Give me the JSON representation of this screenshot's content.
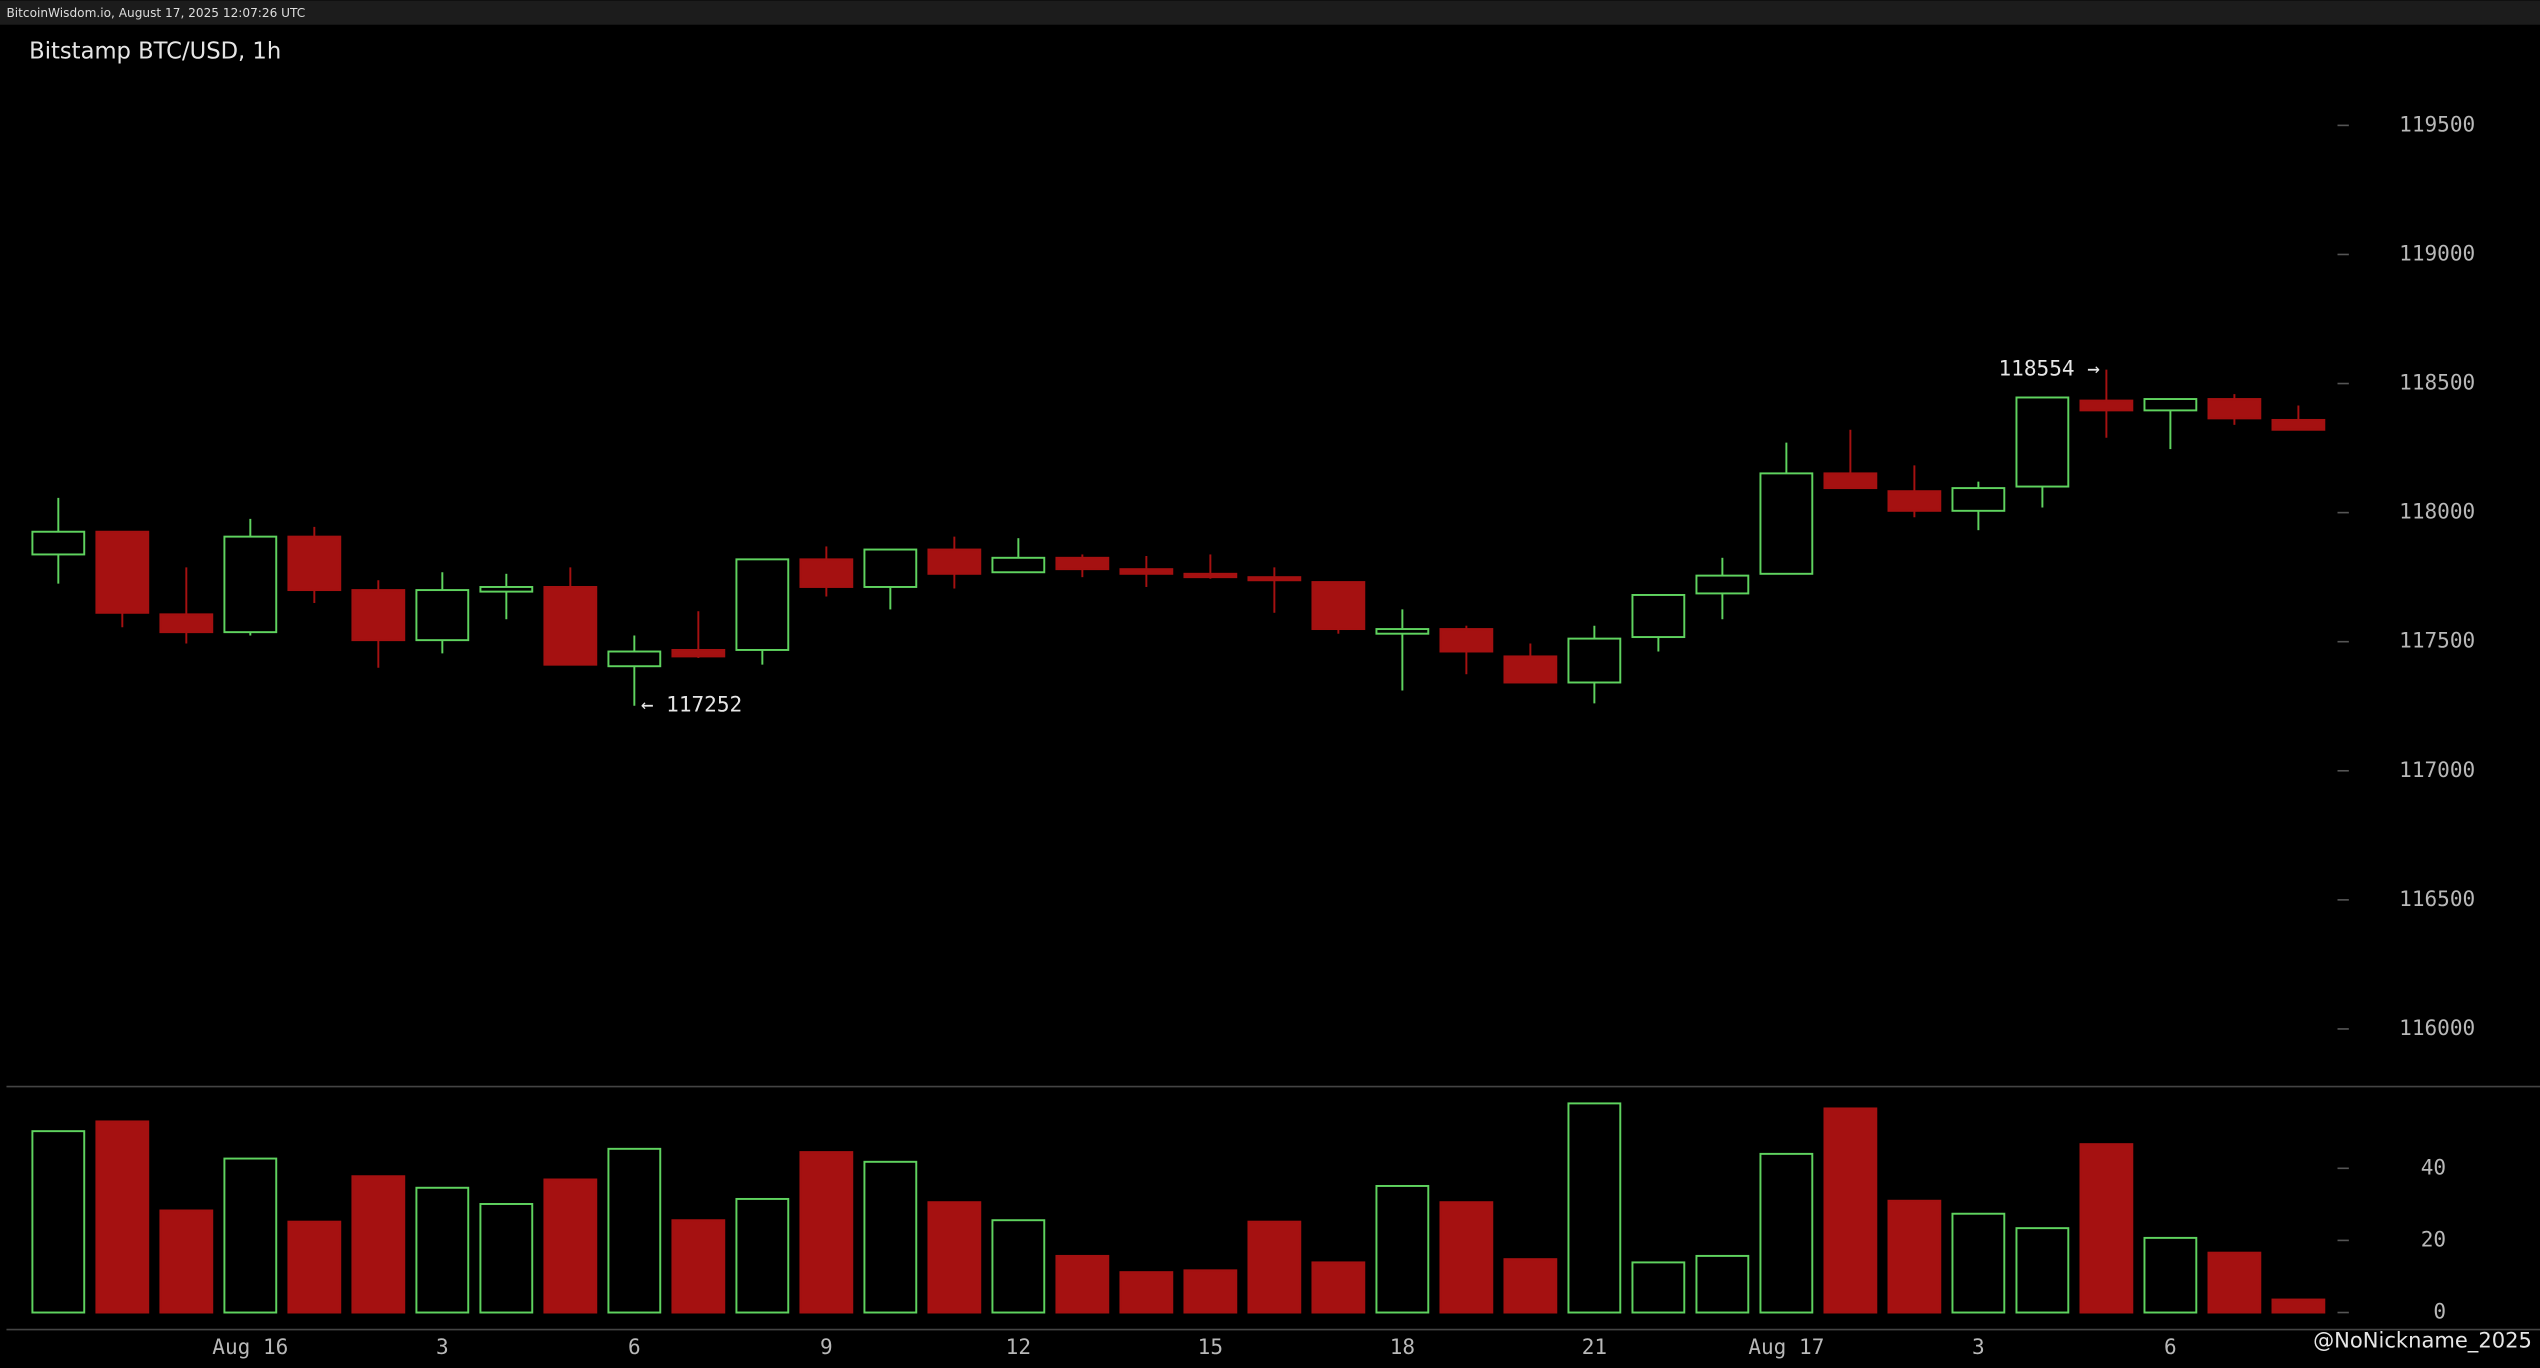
{
  "header": "BitcoinWisdom.io, August 17, 2025 12:07:26 UTC",
  "watermark": "@NoNickname_2025",
  "chart_data": {
    "type": "candlestick",
    "title": "Bitstamp BTC/USD, 1h",
    "categories": [
      null,
      null,
      null,
      "Aug 16",
      null,
      null,
      "3",
      null,
      null,
      "6",
      null,
      null,
      "9",
      null,
      null,
      "12",
      null,
      null,
      "15",
      null,
      null,
      "18",
      null,
      null,
      "21",
      null,
      null,
      "Aug 17",
      null,
      null,
      "3",
      null,
      null,
      "6",
      null,
      null
    ],
    "open": [
      117838,
      117926,
      117606,
      117537,
      117907,
      117700,
      117506,
      117694,
      117712,
      117405,
      117468,
      117468,
      117819,
      117712,
      117857,
      117769,
      117825,
      117781,
      117763,
      117750,
      117731,
      117531,
      117549,
      117443,
      117342,
      117518,
      117687,
      117763,
      118152,
      118083,
      118007,
      118101,
      118434,
      118396,
      118440,
      118359
    ],
    "high": [
      118057,
      117926,
      117788,
      117976,
      117945,
      117738,
      117769,
      117763,
      117788,
      117524,
      117618,
      117819,
      117869,
      117857,
      117907,
      117901,
      117838,
      117832,
      117838,
      117788,
      117731,
      117625,
      117562,
      117493,
      117562,
      117681,
      117825,
      118271,
      118321,
      118183,
      118120,
      118446,
      118554,
      118440,
      118459,
      118415
    ],
    "low": [
      117725,
      117556,
      117493,
      117524,
      117650,
      117399,
      117455,
      117587,
      117411,
      117252,
      117437,
      117411,
      117675,
      117625,
      117706,
      117769,
      117750,
      117712,
      117744,
      117612,
      117531,
      117311,
      117374,
      117342,
      117261,
      117462,
      117587,
      117763,
      118095,
      117982,
      117932,
      118020,
      118290,
      118246,
      118340,
      118321
    ],
    "close": [
      117926,
      117612,
      117537,
      117907,
      117700,
      117506,
      117700,
      117712,
      117411,
      117462,
      117443,
      117819,
      117712,
      117857,
      117763,
      117825,
      117781,
      117763,
      117750,
      117738,
      117549,
      117549,
      117462,
      117342,
      117512,
      117681,
      117756,
      118152,
      118095,
      118007,
      118095,
      118446,
      118396,
      118440,
      118365,
      118321
    ],
    "volume": [
      50.3,
      53,
      28.3,
      42.7,
      25.2,
      37.8,
      34.6,
      30.1,
      36.9,
      45.4,
      25.6,
      31.5,
      44.5,
      41.8,
      30.6,
      25.6,
      15.7,
      11.2,
      11.7,
      25.2,
      13.9,
      35.1,
      30.6,
      14.8,
      58,
      13.9,
      15.7,
      44,
      56.6,
      31,
      27.4,
      23.4,
      46.7,
      20.7,
      16.6,
      3.6
    ],
    "ylim": [
      115780,
      119890
    ],
    "yticks": [
      116000,
      116500,
      117000,
      117500,
      118000,
      118500,
      119000,
      119500
    ],
    "volume_ylim": [
      0,
      62
    ],
    "volume_yticks": [
      0,
      20,
      40
    ],
    "up_color": "#5fd35f",
    "down_color": "#a51111",
    "grid": false,
    "annotations": [
      {
        "text": "← 117252",
        "value": 117252
      },
      {
        "text": "118554 →",
        "value": 118554
      }
    ]
  }
}
